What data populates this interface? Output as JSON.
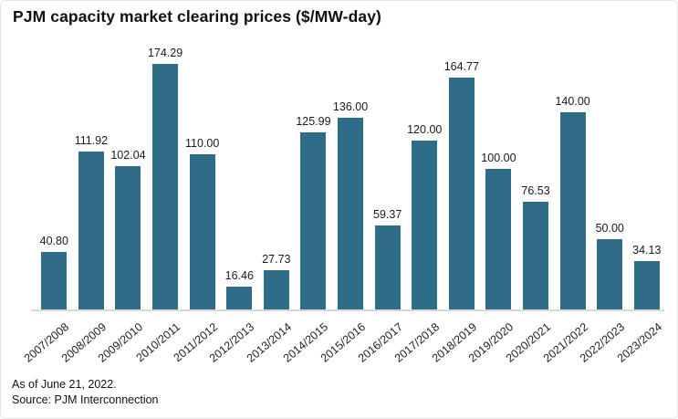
{
  "title": "PJM capacity market clearing prices ($/MW-day)",
  "footer": {
    "as_of": "As of June 21, 2022.",
    "source": "Source: PJM Interconnection"
  },
  "colors": {
    "bar": "#2f6c87",
    "baseline": "#d8d8d8",
    "title_text": "#111111",
    "label_text": "#1a1a1a"
  },
  "chart_data": {
    "type": "bar",
    "title": "PJM capacity market clearing prices ($/MW-day)",
    "categories": [
      "2007/2008",
      "2008/2009",
      "2009/2010",
      "2010/2011",
      "2011/2012",
      "2012/2013",
      "2013/2014",
      "2014/2015",
      "2015/2016",
      "2016/2017",
      "2017/2018",
      "2018/2019",
      "2019/2020",
      "2020/2021",
      "2021/2022",
      "2022/2023",
      "2023/2024"
    ],
    "values": [
      40.8,
      111.92,
      102.04,
      174.29,
      110.0,
      16.46,
      27.73,
      125.99,
      136.0,
      59.37,
      120.0,
      164.77,
      100.0,
      76.53,
      140.0,
      50.0,
      34.13
    ],
    "value_labels": [
      "40.80",
      "111.92",
      "102.04",
      "174.29",
      "110.00",
      "16.46",
      "27.73",
      "125.99",
      "136.00",
      "59.37",
      "120.00",
      "164.77",
      "100.00",
      "76.53",
      "140.00",
      "50.00",
      "34.13"
    ],
    "xlabel": "",
    "ylabel": "",
    "ylim": [
      0,
      180
    ],
    "grid": false,
    "legend": false,
    "bar_color": "#2f6c87",
    "value_labels_position": "above-bars",
    "x_tick_rotation_deg": -40
  }
}
